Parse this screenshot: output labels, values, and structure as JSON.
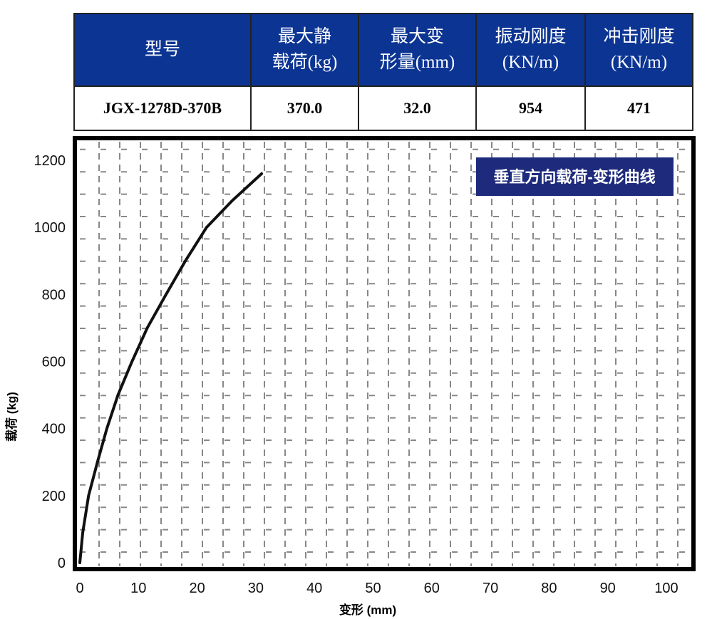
{
  "table": {
    "headers": [
      [
        "型号",
        ""
      ],
      [
        "最大静",
        "载荷(kg)"
      ],
      [
        "最大变",
        "形量(mm)"
      ],
      [
        "振动刚度",
        "(KN/m)"
      ],
      [
        "冲击刚度",
        "(KN/m)"
      ]
    ],
    "row": [
      "JGX-1278D-370B",
      "370.0",
      "32.0",
      "954",
      "471"
    ]
  },
  "chart_data": {
    "type": "line",
    "title": "垂直方向载荷-变形曲线",
    "xlabel": "变形 (mm)",
    "ylabel": "载荷 (kg)",
    "xlim": [
      0,
      100
    ],
    "ylim": [
      0,
      1200
    ],
    "xticks": [
      "0",
      "10",
      "20",
      "30",
      "40",
      "50",
      "60",
      "70",
      "80",
      "90",
      "100"
    ],
    "yticks": [
      "0",
      "200",
      "400",
      "600",
      "800",
      "1000",
      "1200"
    ],
    "grid": true,
    "legend": "top-right",
    "colors": {
      "line": "#111111",
      "title_box": "#1e2a7c",
      "header": "#0b3493",
      "grid": "#888888"
    },
    "series": [
      {
        "x": [
          0,
          0.5,
          1.5,
          3,
          4.6,
          6.5,
          8.9,
          11.5,
          14.7,
          18,
          21.6,
          26,
          31
        ],
        "y": [
          0,
          90,
          200,
          300,
          400,
          500,
          600,
          700,
          800,
          900,
          1000,
          1080,
          1160
        ]
      }
    ]
  }
}
